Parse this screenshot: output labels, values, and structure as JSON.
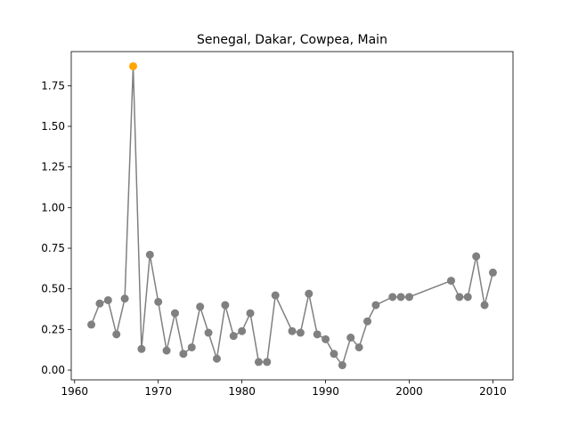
{
  "chart_data": {
    "type": "line",
    "title": "Senegal, Dakar, Cowpea, Main",
    "xlabel": "",
    "ylabel": "",
    "xlim": [
      1959.6,
      2012.4
    ],
    "ylim": [
      -0.06,
      1.96
    ],
    "grid": false,
    "x_ticks": [
      1960,
      1970,
      1980,
      1990,
      2000,
      2010
    ],
    "y_ticks": [
      0.0,
      0.25,
      0.5,
      0.75,
      1.0,
      1.25,
      1.5,
      1.75
    ],
    "x_tick_labels": [
      "1960",
      "1970",
      "1980",
      "1990",
      "2000",
      "2010"
    ],
    "y_tick_labels": [
      "0.00",
      "0.25",
      "0.50",
      "0.75",
      "1.00",
      "1.25",
      "1.50",
      "1.75"
    ],
    "series": [
      {
        "line_color": "#808080",
        "marker_color": "#808080",
        "highlight_color": "#ffa500",
        "highlight_index": 5,
        "x": [
          1962,
          1963,
          1964,
          1965,
          1966,
          1967,
          1968,
          1969,
          1970,
          1971,
          1972,
          1973,
          1974,
          1975,
          1976,
          1977,
          1978,
          1979,
          1980,
          1981,
          1982,
          1983,
          1984,
          1986,
          1987,
          1988,
          1989,
          1990,
          1991,
          1992,
          1993,
          1994,
          1995,
          1996,
          1998,
          1999,
          2000,
          2005,
          2006,
          2007,
          2008,
          2009,
          2010
        ],
        "y": [
          0.28,
          0.41,
          0.43,
          0.22,
          0.44,
          1.87,
          0.13,
          0.71,
          0.42,
          0.12,
          0.35,
          0.1,
          0.14,
          0.39,
          0.23,
          0.07,
          0.4,
          0.21,
          0.24,
          0.35,
          0.05,
          0.05,
          0.46,
          0.24,
          0.23,
          0.47,
          0.22,
          0.19,
          0.1,
          0.03,
          0.2,
          0.14,
          0.3,
          0.4,
          0.45,
          0.45,
          0.45,
          0.55,
          0.45,
          0.45,
          0.7,
          0.4,
          0.6
        ]
      }
    ]
  }
}
